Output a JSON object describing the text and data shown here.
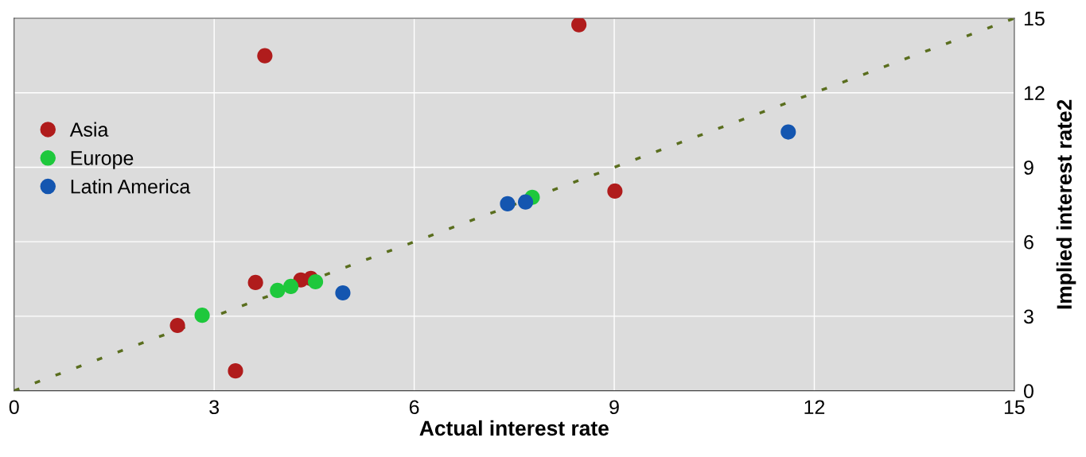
{
  "chart_data": {
    "type": "scatter",
    "xlabel": "Actual interest rate",
    "ylabel": "Implied interest rate2",
    "xlim": [
      0,
      15
    ],
    "ylim": [
      0,
      15
    ],
    "xticks": [
      0,
      3,
      6,
      9,
      12,
      15
    ],
    "yticks": [
      0,
      3,
      6,
      9,
      12,
      15
    ],
    "grid": true,
    "legend": "left",
    "marker": "circle",
    "series": [
      {
        "name": "Asia",
        "color": "#b01c1c",
        "x": [
          8.47,
          3.76,
          9.01,
          3.62,
          4.3,
          4.45,
          2.45,
          3.32
        ],
        "values": [
          14.74,
          13.49,
          8.04,
          4.36,
          4.46,
          4.52,
          2.63,
          0.8
        ]
      },
      {
        "name": "Europe",
        "color": "#1ec83c",
        "x": [
          2.82,
          3.95,
          4.15,
          4.52,
          7.77
        ],
        "values": [
          3.04,
          4.04,
          4.2,
          4.39,
          7.79
        ]
      },
      {
        "name": "Latin America",
        "color": "#1456b0",
        "x": [
          4.93,
          7.4,
          7.67,
          11.61
        ],
        "values": [
          3.94,
          7.53,
          7.6,
          10.42
        ]
      },
      {
        "type": "line",
        "color": "#5a6e1e",
        "line_style": "dotted",
        "marker": "none",
        "x": [
          0,
          15
        ],
        "values": [
          0,
          15
        ]
      }
    ]
  }
}
